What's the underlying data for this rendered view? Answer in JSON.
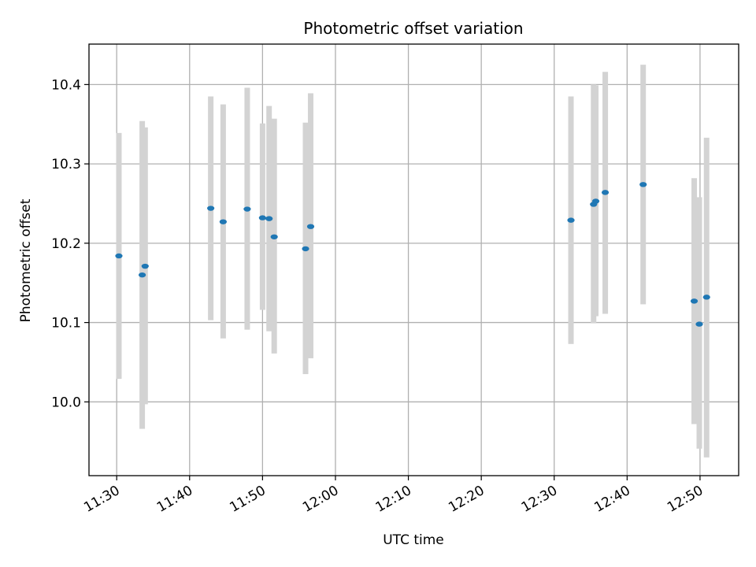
{
  "chart_data": {
    "type": "scatter",
    "title": "Photometric offset variation",
    "xlabel": "UTC time",
    "ylabel": "Photometric offset",
    "x_tick_labels": [
      "11:30",
      "11:40",
      "11:50",
      "12:00",
      "12:10",
      "12:20",
      "12:30",
      "12:40",
      "12:50"
    ],
    "y_tick_labels": [
      "10.0",
      "10.1",
      "10.2",
      "10.3",
      "10.4"
    ],
    "y_ticks": [
      10.0,
      10.1,
      10.2,
      10.3,
      10.4
    ],
    "xlim": [
      "11:26.2",
      "12:55.3"
    ],
    "ylim": [
      9.907,
      10.451
    ],
    "grid": true,
    "errorbar_color": "#d3d3d3",
    "marker_color": "#1f77b4",
    "points": [
      {
        "x": "11:30.3",
        "y": 10.184,
        "yerr_low": 10.029,
        "yerr_high": 10.339
      },
      {
        "x": "11:33.5",
        "y": 10.16,
        "yerr_low": 9.966,
        "yerr_high": 10.354
      },
      {
        "x": "11:33.9",
        "y": 10.171,
        "yerr_low": 9.997,
        "yerr_high": 10.346
      },
      {
        "x": "11:42.9",
        "y": 10.244,
        "yerr_low": 10.103,
        "yerr_high": 10.385
      },
      {
        "x": "11:44.6",
        "y": 10.227,
        "yerr_low": 10.08,
        "yerr_high": 10.375
      },
      {
        "x": "11:47.9",
        "y": 10.243,
        "yerr_low": 10.091,
        "yerr_high": 10.396
      },
      {
        "x": "11:50.0",
        "y": 10.232,
        "yerr_low": 10.116,
        "yerr_high": 10.351
      },
      {
        "x": "11:50.9",
        "y": 10.231,
        "yerr_low": 10.089,
        "yerr_high": 10.373
      },
      {
        "x": "11:51.6",
        "y": 10.208,
        "yerr_low": 10.061,
        "yerr_high": 10.357
      },
      {
        "x": "11:55.9",
        "y": 10.193,
        "yerr_low": 10.035,
        "yerr_high": 10.352
      },
      {
        "x": "11:56.6",
        "y": 10.221,
        "yerr_low": 10.055,
        "yerr_high": 10.389
      },
      {
        "x": "12:32.3",
        "y": 10.229,
        "yerr_low": 10.073,
        "yerr_high": 10.385
      },
      {
        "x": "12:35.4",
        "y": 10.249,
        "yerr_low": 10.099,
        "yerr_high": 10.4
      },
      {
        "x": "12:35.7",
        "y": 10.253,
        "yerr_low": 10.108,
        "yerr_high": 10.399
      },
      {
        "x": "12:37.0",
        "y": 10.264,
        "yerr_low": 10.111,
        "yerr_high": 10.416
      },
      {
        "x": "12:42.2",
        "y": 10.274,
        "yerr_low": 10.123,
        "yerr_high": 10.425
      },
      {
        "x": "12:49.2",
        "y": 10.127,
        "yerr_low": 9.972,
        "yerr_high": 10.282
      },
      {
        "x": "12:49.9",
        "y": 10.098,
        "yerr_low": 9.941,
        "yerr_high": 10.258
      },
      {
        "x": "12:50.9",
        "y": 10.132,
        "yerr_low": 9.93,
        "yerr_high": 10.333
      }
    ]
  }
}
